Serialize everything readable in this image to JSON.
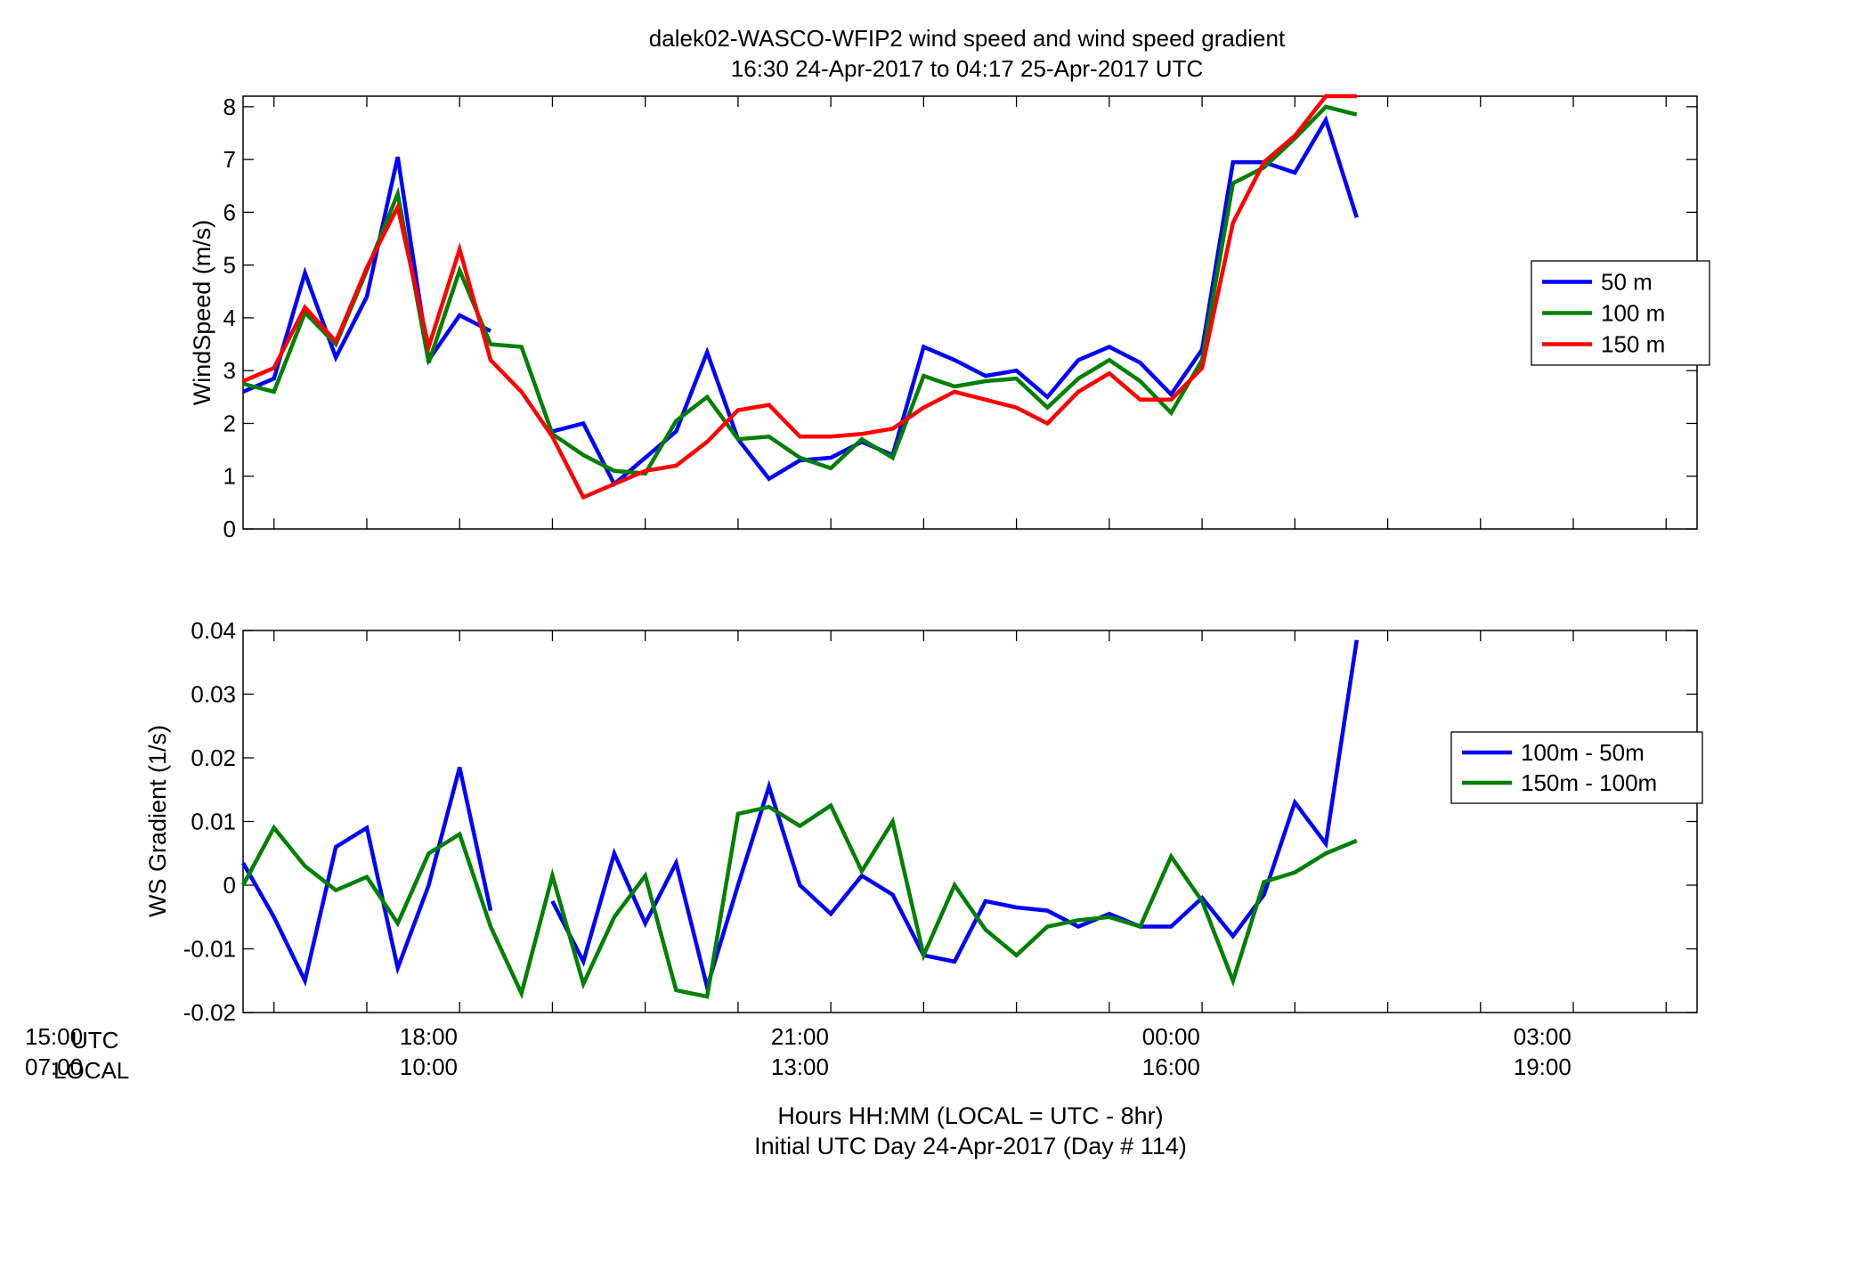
{
  "header": {
    "title_line1": "dalek02-WASCO-WFIP2  wind speed and wind speed gradient",
    "title_line2": "16:30 24-Apr-2017 to 04:17 25-Apr-2017  UTC"
  },
  "xaxis": {
    "label_line1": "Hours HH:MM  (LOCAL = UTC - 8hr)",
    "label_line2": "Initial UTC Day 24-Apr-2017 (Day # 114)",
    "corner_utc_time": "15:00",
    "corner_utc_label": "UTC",
    "corner_local_time": "07:00",
    "corner_local_label": "LOCAL",
    "ticks_utc": [
      "18:00",
      "21:00",
      "00:00",
      "03:00"
    ],
    "ticks_local": [
      "10:00",
      "13:00",
      "16:00",
      "19:00"
    ]
  },
  "chart_data": [
    {
      "type": "line",
      "ylabel": "WindSpeed (m/s)",
      "xlim": [
        16.5,
        28.25
      ],
      "ylim": [
        0,
        8.2
      ],
      "yticks": [
        0,
        1,
        2,
        3,
        4,
        5,
        6,
        7,
        8
      ],
      "ytick_labels": [
        "0",
        "1",
        "2",
        "3",
        "4",
        "5",
        "6",
        "7",
        "8"
      ],
      "legend_position": "right",
      "x_hours_utc": [
        16.5,
        16.75,
        17,
        17.25,
        17.5,
        17.75,
        18,
        18.25,
        18.5,
        18.75,
        19,
        19.25,
        19.5,
        19.75,
        20,
        20.25,
        20.5,
        20.75,
        21,
        21.25,
        21.5,
        21.75,
        22,
        22.25,
        22.5,
        22.75,
        23,
        23.25,
        23.5,
        23.75,
        24,
        24.25,
        24.5,
        24.75,
        25,
        25.25,
        25.5
      ],
      "series": [
        {
          "name": "50 m",
          "color": "#0000ff",
          "values": [
            2.6,
            2.85,
            4.85,
            3.25,
            4.4,
            7.05,
            3.2,
            4.05,
            3.75,
            null,
            1.85,
            2.0,
            0.85,
            1.35,
            1.85,
            3.35,
            1.7,
            0.95,
            1.3,
            1.35,
            1.65,
            1.4,
            3.45,
            3.2,
            2.9,
            3.0,
            2.5,
            3.2,
            3.45,
            3.15,
            2.55,
            3.4,
            6.95,
            6.95,
            6.75,
            7.75,
            5.9
          ]
        },
        {
          "name": "100 m",
          "color": "#008000",
          "values": [
            2.75,
            2.6,
            4.1,
            3.5,
            4.9,
            6.35,
            3.15,
            4.9,
            3.5,
            3.45,
            1.8,
            1.4,
            1.1,
            1.05,
            2.05,
            2.5,
            1.7,
            1.75,
            1.35,
            1.15,
            1.7,
            1.35,
            2.9,
            2.7,
            2.8,
            2.85,
            2.3,
            2.85,
            3.2,
            2.8,
            2.2,
            3.2,
            6.55,
            6.85,
            7.4,
            8.0,
            7.85
          ]
        },
        {
          "name": "150 m",
          "color": "#ff0000",
          "values": [
            2.8,
            3.05,
            4.2,
            3.55,
            4.95,
            6.1,
            3.45,
            5.3,
            3.2,
            2.6,
            1.75,
            0.6,
            0.85,
            1.1,
            1.2,
            1.65,
            2.25,
            2.35,
            1.75,
            1.75,
            1.8,
            1.9,
            2.3,
            2.6,
            2.45,
            2.3,
            2.0,
            2.6,
            2.95,
            2.45,
            2.45,
            3.05,
            5.8,
            6.95,
            7.45,
            8.2,
            8.2
          ]
        }
      ]
    },
    {
      "type": "line",
      "ylabel": "WS Gradient (1/s)",
      "xlim": [
        16.5,
        28.25
      ],
      "ylim": [
        -0.02,
        0.04
      ],
      "yticks": [
        -0.02,
        -0.01,
        0,
        0.01,
        0.02,
        0.03,
        0.04
      ],
      "ytick_labels": [
        "-0.02",
        "-0.01",
        "0",
        "0.01",
        "0.02",
        "0.03",
        "0.04"
      ],
      "legend_position": "right",
      "x_hours_utc": [
        16.5,
        16.75,
        17,
        17.25,
        17.5,
        17.75,
        18,
        18.25,
        18.5,
        18.75,
        19,
        19.25,
        19.5,
        19.75,
        20,
        20.25,
        20.5,
        20.75,
        21,
        21.25,
        21.5,
        21.75,
        22,
        22.25,
        22.5,
        22.75,
        23,
        23.25,
        23.5,
        23.75,
        24,
        24.25,
        24.5,
        24.75,
        25,
        25.25,
        25.5
      ],
      "series": [
        {
          "name": "100m - 50m",
          "color": "#0000ff",
          "values": [
            0.0035,
            -0.005,
            -0.015,
            0.006,
            0.009,
            -0.013,
            0.0,
            0.0185,
            -0.004,
            null,
            -0.0025,
            -0.012,
            0.005,
            -0.006,
            0.0035,
            -0.016,
            0.0,
            0.0155,
            0.0,
            -0.0045,
            0.0015,
            -0.0015,
            -0.011,
            -0.012,
            -0.0025,
            -0.0035,
            -0.004,
            -0.0065,
            -0.0045,
            -0.0065,
            -0.0065,
            -0.002,
            -0.008,
            -0.0015,
            0.013,
            0.0065,
            0.0385
          ]
        },
        {
          "name": "150m - 100m",
          "color": "#008000",
          "values": [
            0.0,
            0.009,
            0.003,
            -0.0008,
            0.0013,
            -0.006,
            0.005,
            0.008,
            -0.0065,
            -0.017,
            0.0015,
            -0.0155,
            -0.005,
            0.0015,
            -0.0165,
            -0.0175,
            0.0112,
            0.0123,
            0.0093,
            0.0125,
            0.0022,
            0.01,
            -0.011,
            0.0,
            -0.007,
            -0.011,
            -0.0065,
            -0.0055,
            -0.005,
            -0.0065,
            0.0045,
            -0.0025,
            -0.015,
            0.0005,
            0.002,
            0.005,
            0.007
          ]
        }
      ]
    }
  ]
}
